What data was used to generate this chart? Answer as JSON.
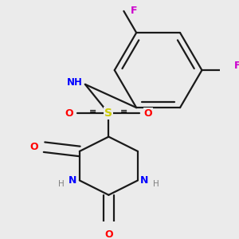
{
  "background_color": "#ebebeb",
  "bond_color": "#1a1a1a",
  "atom_colors": {
    "N": "#0000ff",
    "O": "#ff0000",
    "S": "#cccc00",
    "F": "#cc00cc",
    "C": "#1a1a1a",
    "H": "#808080"
  },
  "lw": 1.6,
  "fs": 9.0
}
